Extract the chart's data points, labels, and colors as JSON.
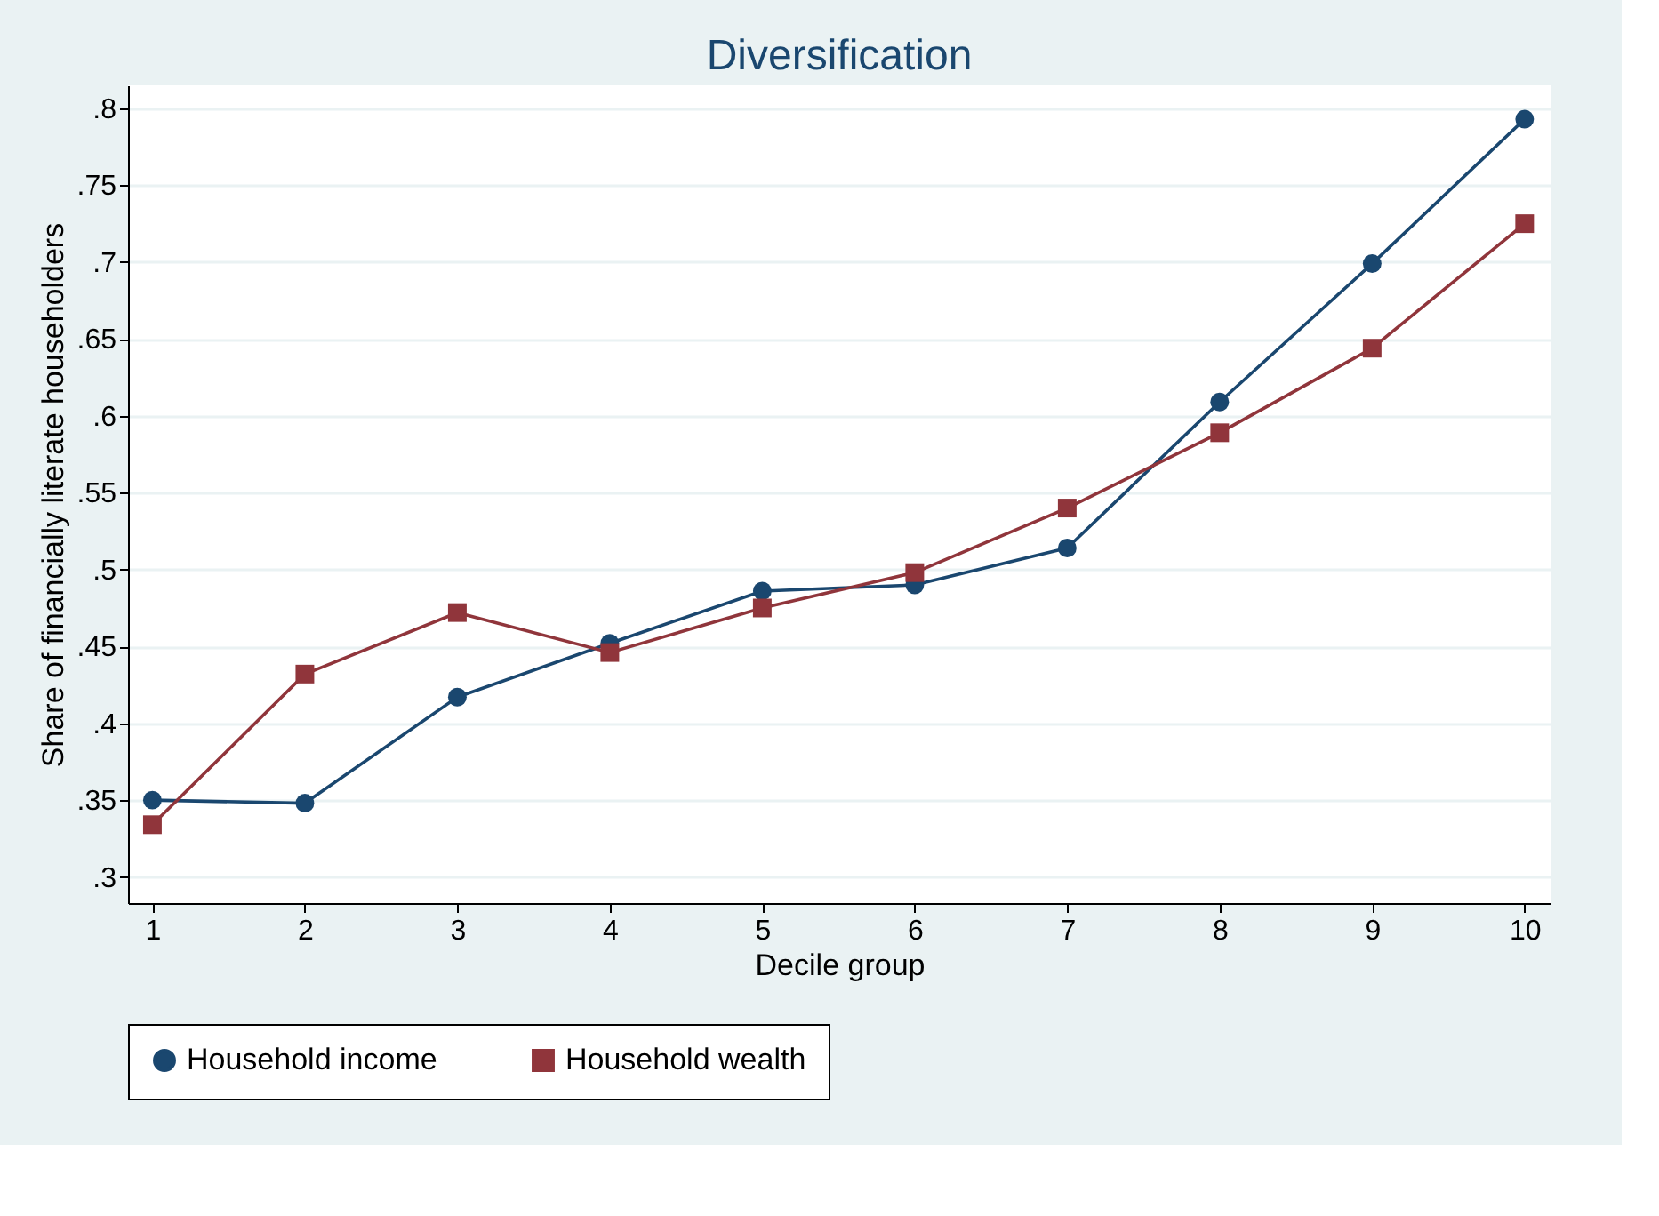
{
  "chart_data": {
    "type": "line",
    "title": "Diversification",
    "xlabel": "Decile group",
    "ylabel": "Share of financially literate householders",
    "x": [
      1,
      2,
      3,
      4,
      5,
      6,
      7,
      8,
      9,
      10
    ],
    "series": [
      {
        "name": "Household income",
        "color": "#1a476f",
        "marker": "circle",
        "values": [
          0.35,
          0.348,
          0.417,
          0.452,
          0.486,
          0.49,
          0.514,
          0.609,
          0.699,
          0.793
        ]
      },
      {
        "name": "Household wealth",
        "color": "#90353b",
        "marker": "square",
        "values": [
          0.334,
          0.432,
          0.472,
          0.446,
          0.475,
          0.498,
          0.54,
          0.589,
          0.644,
          0.725
        ]
      }
    ],
    "xlim": [
      0.84,
      10.17
    ],
    "xticks": [
      1,
      2,
      3,
      4,
      5,
      6,
      7,
      8,
      9,
      10
    ],
    "ylim": [
      0.283,
      0.815
    ],
    "yticks": [
      {
        "value": 0.3,
        "label": ".3"
      },
      {
        "value": 0.35,
        "label": ".35"
      },
      {
        "value": 0.4,
        "label": ".4"
      },
      {
        "value": 0.45,
        "label": ".45"
      },
      {
        "value": 0.5,
        "label": ".5"
      },
      {
        "value": 0.55,
        "label": ".55"
      },
      {
        "value": 0.6,
        "label": ".6"
      },
      {
        "value": 0.65,
        "label": ".65"
      },
      {
        "value": 0.7,
        "label": ".7"
      },
      {
        "value": 0.75,
        "label": ".75"
      },
      {
        "value": 0.8,
        "label": ".8"
      }
    ],
    "grid": "y",
    "legend": "bottom",
    "line_style": "solid"
  }
}
